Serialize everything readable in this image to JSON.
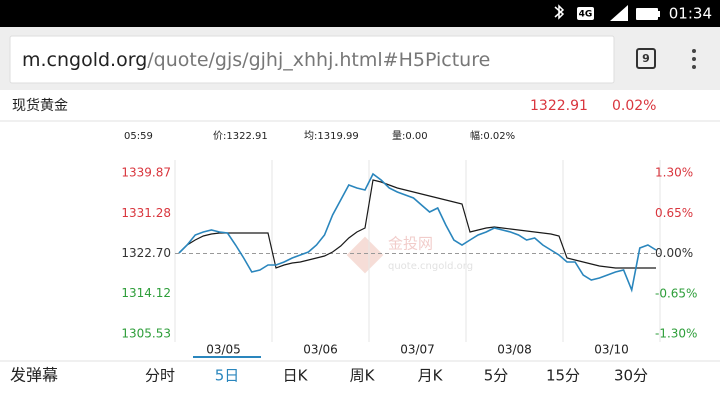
{
  "status_bar": {
    "network": "4G",
    "time": "01:34"
  },
  "browser": {
    "domain": "m.cngold.org",
    "path": "/quote/gjs/gjhj_xhhj.html#H5Picture",
    "tab_count": 9
  },
  "quote": {
    "name": "现货黄金",
    "price": 1322.91,
    "change": "0.02%"
  },
  "info": {
    "time": "05:59",
    "price": "价:1322.91",
    "avg": "均:1319.99",
    "volume": "量:0.00",
    "range": "幅:0.02%"
  },
  "chart_data": {
    "type": "line",
    "xlim": [
      -0.5,
      59.5
    ],
    "xticks": [
      {
        "value": 5.5,
        "label": "03/05"
      },
      {
        "value": 17.5,
        "label": "03/06"
      },
      {
        "value": 29.5,
        "label": "03/07"
      },
      {
        "value": 41.5,
        "label": "03/08"
      },
      {
        "value": 53.5,
        "label": "03/10"
      }
    ],
    "ylim": [
      1305.53,
      1339.87
    ],
    "yticks": [
      1339.87,
      1331.28,
      {
        "value": 1322.7,
        "label": "1322.70"
      },
      1314.12,
      1305.53
    ],
    "y2lim": [
      -1.3,
      1.3
    ],
    "y2ticks": [
      {
        "value": 1.3,
        "label": "1.30%"
      },
      {
        "value": 0.65,
        "label": "0.65%"
      },
      {
        "value": 0,
        "label": "0.00%"
      },
      {
        "value": -0.65,
        "label": "-0.65%"
      },
      {
        "value": -1.3,
        "label": "-1.30%"
      }
    ],
    "up_color": "#d9363e",
    "down_color": "#2e9e3a",
    "series": [
      {
        "color": "#2a86bd",
        "values": [
          1322.81,
          1324.51,
          1326.65,
          1327.29,
          1327.71,
          1327.29,
          1327.07,
          1324.51,
          1321.74,
          1318.75,
          1319.18,
          1320.25,
          1320.25,
          1320.89,
          1321.74,
          1322.38,
          1323.02,
          1324.51,
          1326.65,
          1330.91,
          1334.11,
          1337.31,
          1336.67,
          1336.24,
          1339.66,
          1338.38,
          1336.67,
          1335.82,
          1335.18,
          1334.54,
          1333.04,
          1331.55,
          1332.4,
          1328.78,
          1325.58,
          1324.51,
          1325.58,
          1326.65,
          1327.29,
          1328.14,
          1327.71,
          1327.29,
          1326.65,
          1325.58,
          1326.01,
          1324.51,
          1323.45,
          1322.38,
          1320.89,
          1320.89,
          1318.11,
          1317.05,
          1317.47,
          1318.11,
          1318.75,
          1319.18,
          1314.91,
          1323.87,
          1324.51,
          1323.45
        ]
      },
      {
        "color": "#1a1a1a",
        "values": [
          1322.81,
          1324.51,
          1325.58,
          1326.43,
          1326.86,
          1327.07,
          1327.07,
          1327.07,
          1327.07,
          1327.07,
          1327.07,
          1327.07,
          1319.61,
          1320.25,
          1320.67,
          1320.89,
          1321.31,
          1321.74,
          1322.17,
          1323.02,
          1324.3,
          1326.01,
          1327.29,
          1328.14,
          1338.38,
          1337.95,
          1337.31,
          1336.67,
          1336.24,
          1335.82,
          1335.39,
          1334.96,
          1334.54,
          1334.11,
          1333.68,
          1333.26,
          1327.29,
          1327.71,
          1328.14,
          1328.35,
          1328.14,
          1327.93,
          1327.71,
          1327.5,
          1327.29,
          1327.07,
          1326.86,
          1326.43,
          1321.74,
          1321.31,
          1320.89,
          1320.46,
          1320.03,
          1319.82,
          1319.61,
          1319.61,
          1319.61,
          1319.61,
          1319.61,
          1319.61
        ]
      }
    ]
  },
  "watermark": {
    "name": "金投网",
    "url": "quote.cngold.org"
  },
  "toolbar": {
    "danmaku": "发弹幕",
    "tabs": [
      "分时",
      "5日",
      "日K",
      "周K",
      "月K",
      "5分",
      "15分",
      "30分"
    ],
    "active_tab": 1
  }
}
